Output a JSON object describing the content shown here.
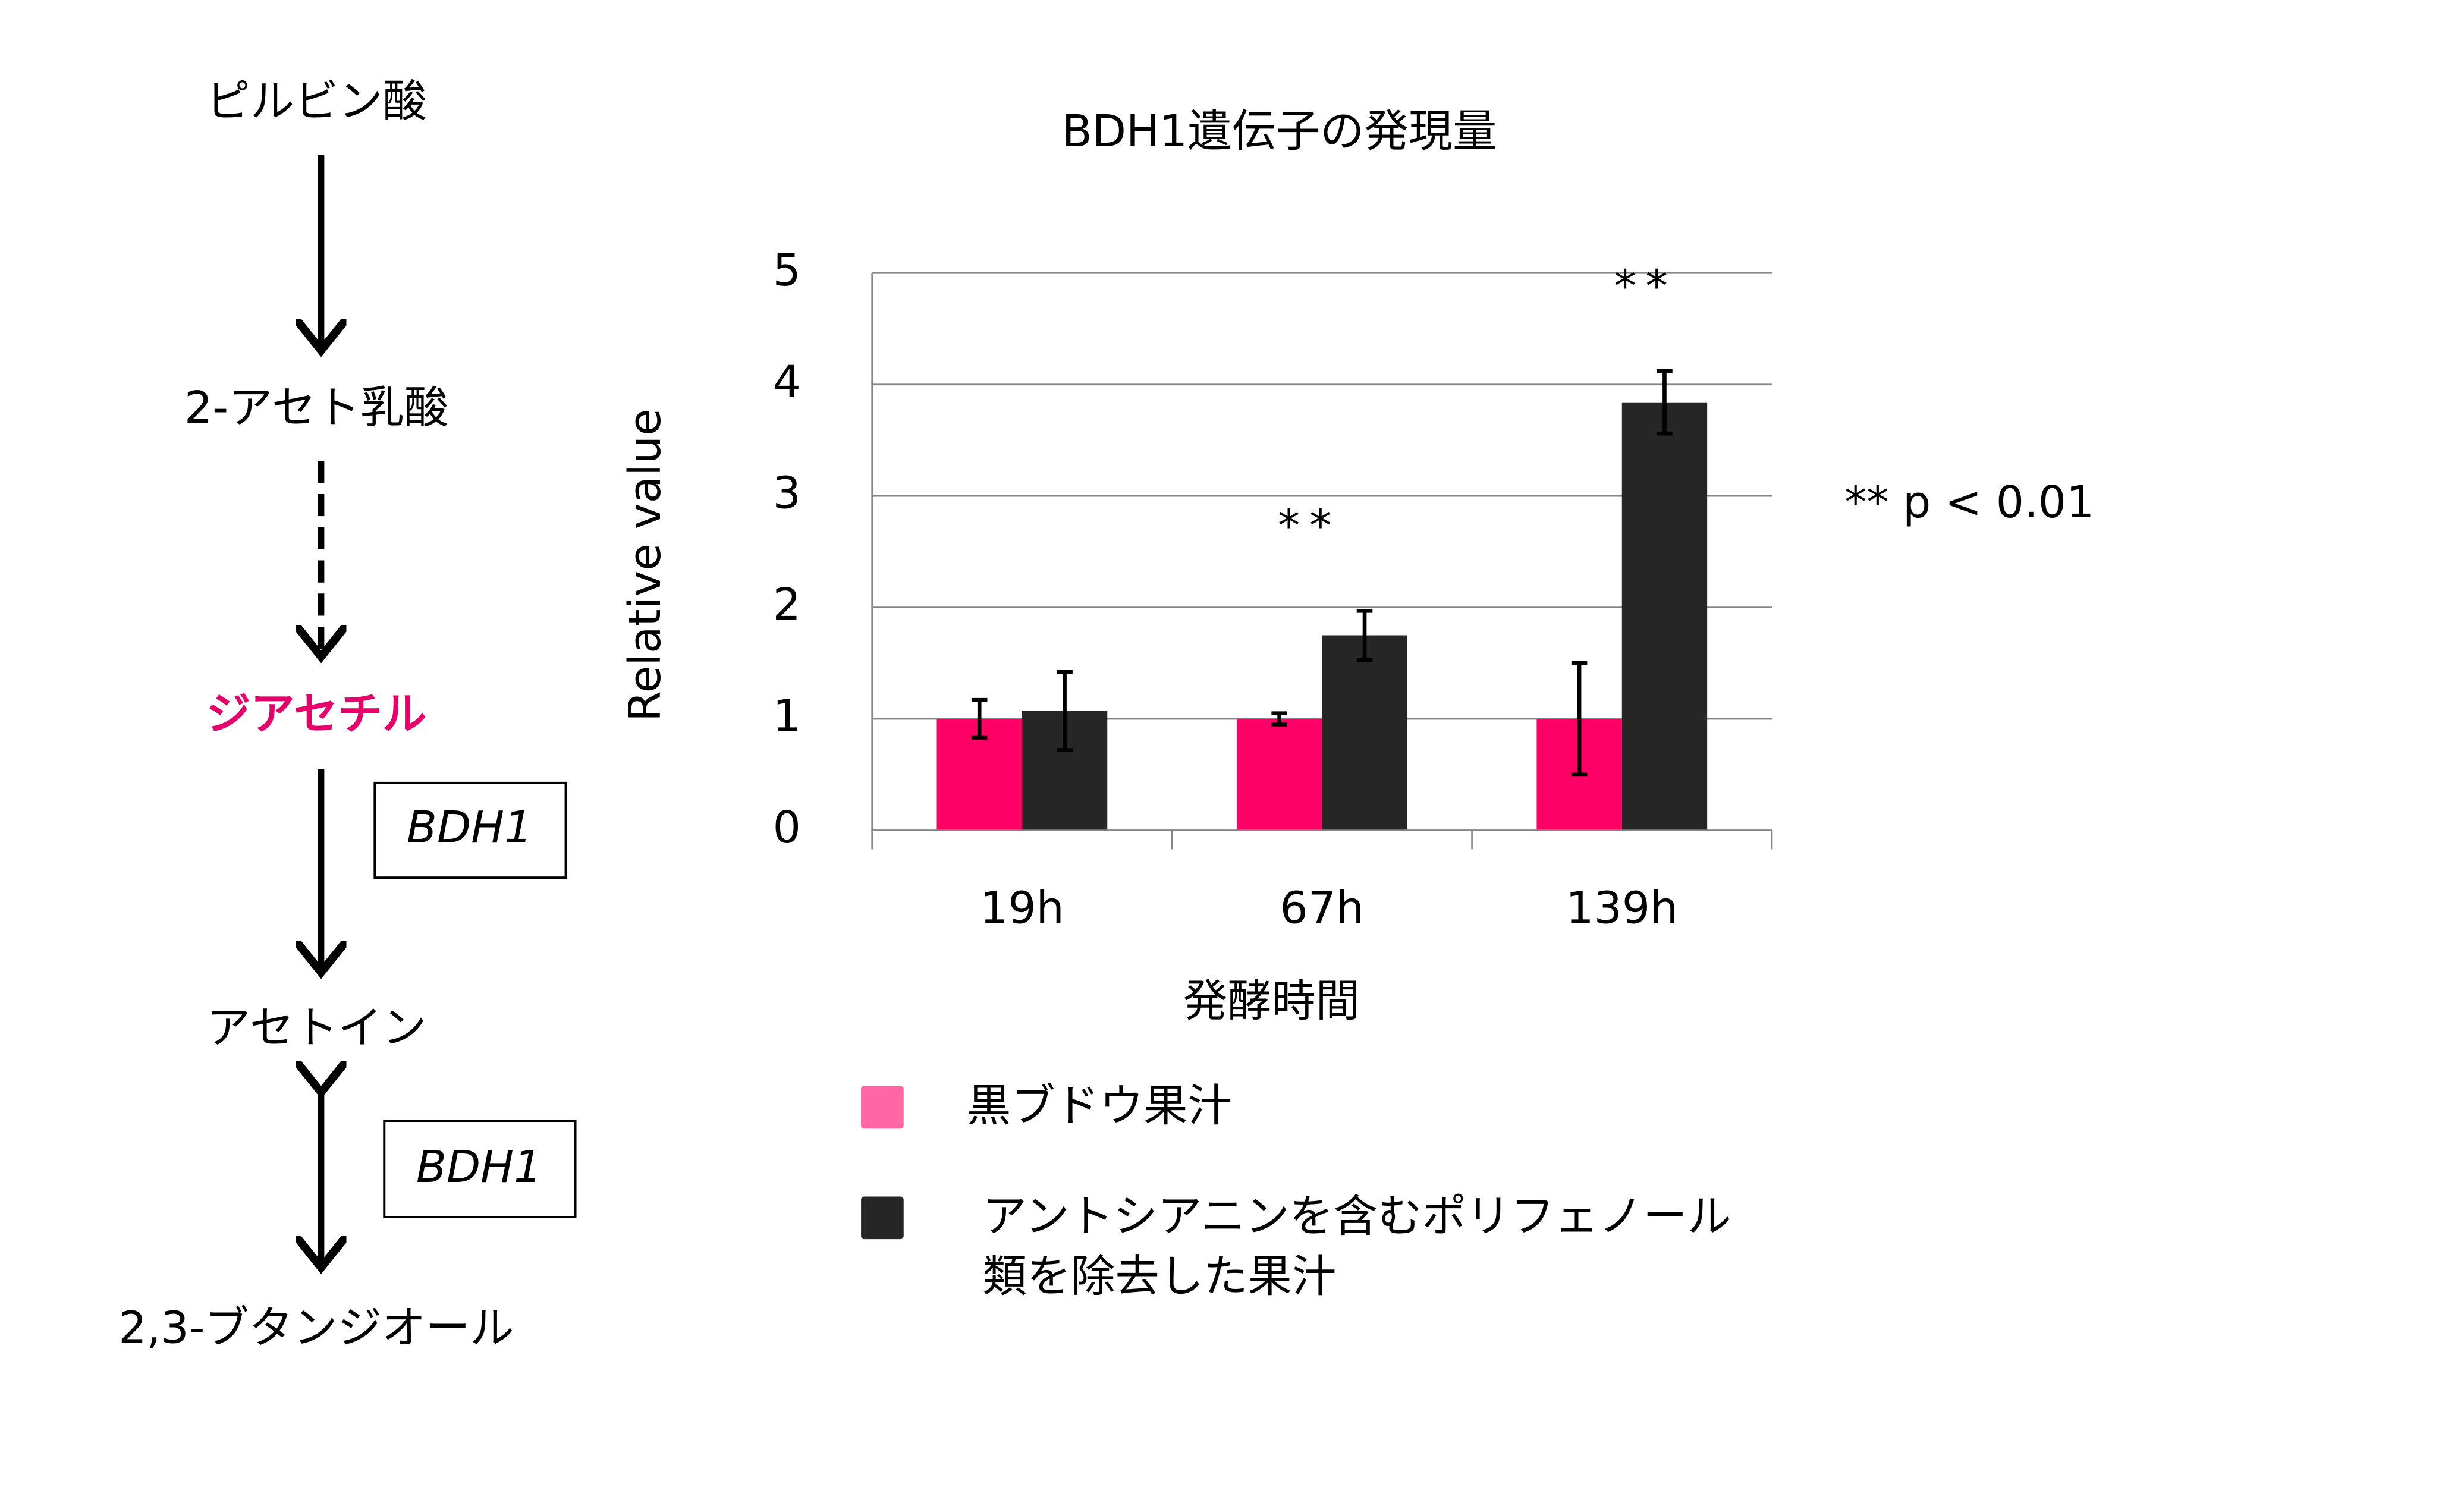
{
  "pathway": {
    "nodes": [
      {
        "label": "ピルビン酸"
      },
      {
        "label": "2-アセト乳酸"
      },
      {
        "label": "ジアセチル"
      },
      {
        "label": "アセトイン"
      },
      {
        "label": "2,3-ブタンジオール"
      }
    ],
    "enzymes": [
      "BDH1",
      "BDH1"
    ]
  },
  "chart_data": {
    "type": "bar",
    "title": "BDH1遺伝子の発現量",
    "x_label": "発酵時間",
    "y_label": "Relative value",
    "categories": [
      "19h",
      "67h",
      "139h"
    ],
    "series": [
      {
        "name": "黒ブドウ果汁",
        "color": "#ff0066",
        "values": [
          1,
          1,
          1
        ],
        "errors": [
          0.17,
          0.05,
          0.5
        ]
      },
      {
        "name": "アントシアニンを含むポリフェノール類を除去した果汁",
        "color": "#262626",
        "values": [
          1.07,
          1.75,
          3.84
        ],
        "errors": [
          0.35,
          0.22,
          0.28
        ]
      }
    ],
    "ylim": [
      0,
      5
    ],
    "yticks": [
      0,
      1,
      2,
      3,
      4,
      5
    ],
    "grid": true,
    "annotations": [
      {
        "text": "**",
        "x": "67h"
      },
      {
        "text": "**",
        "x": "139h"
      }
    ],
    "note": "** p < 0.01"
  }
}
